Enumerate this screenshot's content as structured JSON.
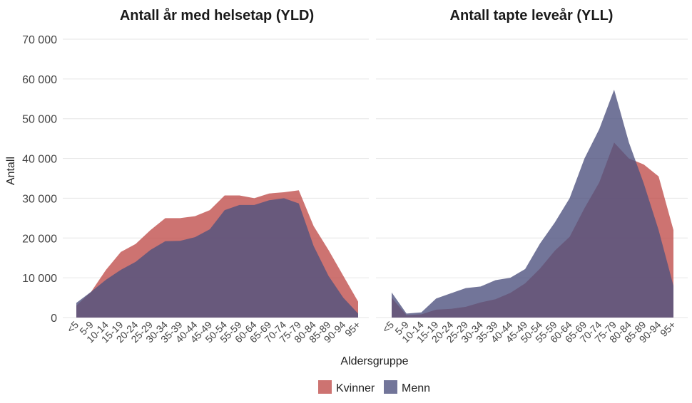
{
  "chart_data": {
    "type": "area",
    "y_label": "Antall",
    "x_label": "Aldersgruppe",
    "ylim": [
      0,
      70000
    ],
    "y_ticks": [
      0,
      10000,
      20000,
      30000,
      40000,
      50000,
      60000,
      70000
    ],
    "y_tick_labels": [
      "0",
      "10 000",
      "20 000",
      "30 000",
      "40 000",
      "50 000",
      "60 000",
      "70 000"
    ],
    "categories": [
      "<5",
      "5-9",
      "10-14",
      "15-19",
      "20-24",
      "25-29",
      "30-34",
      "35-39",
      "40-44",
      "45-49",
      "50-54",
      "55-59",
      "60-64",
      "65-69",
      "70-74",
      "75-79",
      "80-84",
      "85-89",
      "90-94",
      "95+"
    ],
    "legend": [
      {
        "name": "Kvinner",
        "color": "#C0504D"
      },
      {
        "name": "Menn",
        "color": "#4F5280"
      }
    ],
    "panels": [
      {
        "title": "Antall år med helsetap (YLD)",
        "series": [
          {
            "name": "Kvinner",
            "values": [
              3000,
              6500,
              12000,
              16500,
              18500,
              22000,
              25000,
              25000,
              25500,
              27000,
              30700,
              30700,
              30000,
              31200,
              31500,
              32000,
              23000,
              17000,
              10500,
              4000
            ]
          },
          {
            "name": "Menn",
            "values": [
              3700,
              6500,
              9500,
              12000,
              14000,
              17000,
              19200,
              19300,
              20200,
              22200,
              27000,
              28300,
              28300,
              29500,
              30000,
              28700,
              18000,
              10500,
              5000,
              1000
            ]
          }
        ]
      },
      {
        "title": "Antall tapte leveår (YLL)",
        "series": [
          {
            "name": "Kvinner",
            "values": [
              5000,
              600,
              800,
              2000,
              2200,
              2700,
              3800,
              4600,
              6200,
              8600,
              12300,
              16800,
              20300,
              27500,
              34000,
              44000,
              40000,
              38500,
              35500,
              22000
            ]
          },
          {
            "name": "Menn",
            "values": [
              6300,
              1000,
              1300,
              4800,
              6100,
              7400,
              7800,
              9400,
              10000,
              12200,
              18600,
              23900,
              30000,
              40000,
              47400,
              57300,
              44000,
              33700,
              22000,
              8000
            ]
          }
        ]
      }
    ]
  }
}
